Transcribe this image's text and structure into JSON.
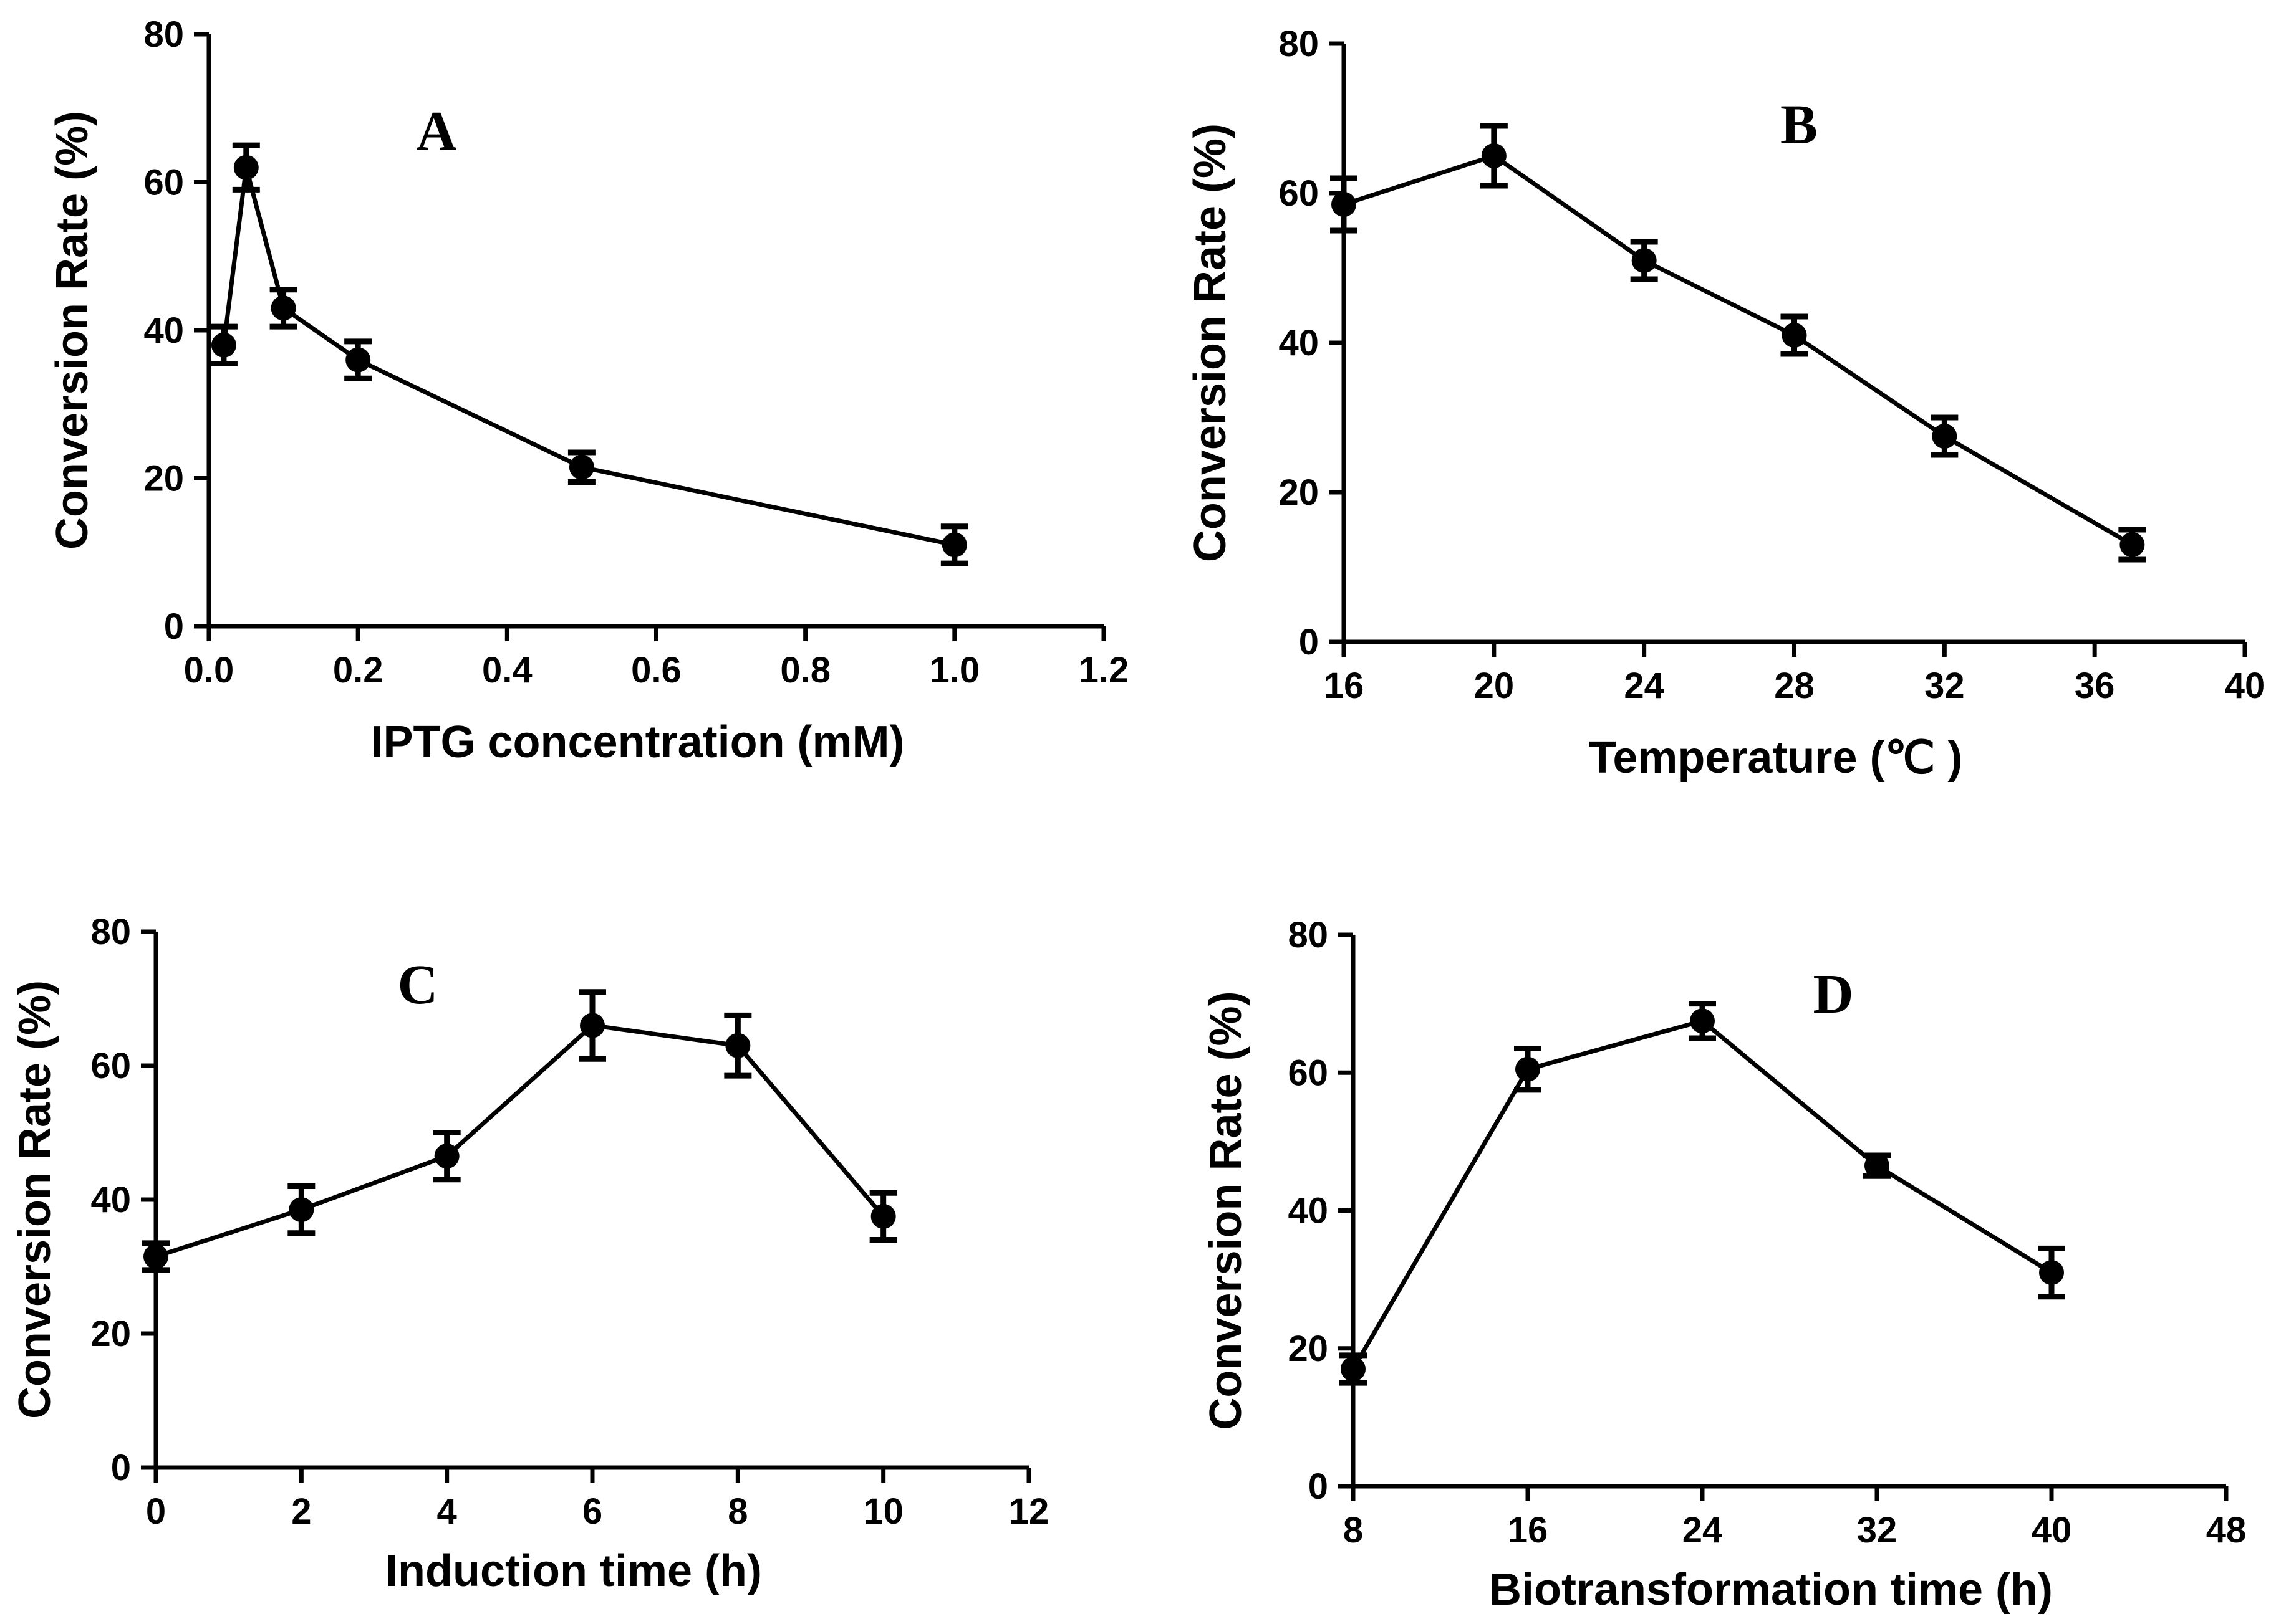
{
  "chart_data": [
    {
      "type": "line",
      "panel_label": "A",
      "title": "",
      "xlabel": "IPTG concentration (mM)",
      "ylabel": "Conversion Rate (%)",
      "xlim": [
        0,
        1.2
      ],
      "ylim": [
        0,
        80
      ],
      "xticks": [
        "0.0",
        "0.2",
        "0.4",
        "0.6",
        "0.8",
        "1.0",
        "1.2"
      ],
      "yticks": [
        "0",
        "20",
        "40",
        "60",
        "80"
      ],
      "grid": false,
      "series": [
        {
          "name": "Conversion rate",
          "x": [
            0.02,
            0.05,
            0.1,
            0.2,
            0.5,
            1.0
          ],
          "y": [
            38,
            62,
            43,
            36,
            21.5,
            11
          ],
          "err": [
            2.5,
            3,
            2.5,
            2.5,
            2,
            2.5
          ]
        }
      ]
    },
    {
      "type": "line",
      "panel_label": "B",
      "title": "",
      "xlabel": "Temperature (℃ )",
      "ylabel": "Conversion Rate (%)",
      "xlim": [
        16,
        40
      ],
      "ylim": [
        0,
        80
      ],
      "xticks": [
        "16",
        "20",
        "24",
        "28",
        "32",
        "36",
        "40"
      ],
      "yticks": [
        "0",
        "20",
        "40",
        "60",
        "80"
      ],
      "grid": false,
      "series": [
        {
          "name": "Conversion rate",
          "x": [
            16,
            20,
            24,
            28,
            32,
            37
          ],
          "y": [
            58.5,
            65,
            51,
            41,
            27.5,
            13
          ],
          "err": [
            3.5,
            4,
            2.5,
            2.5,
            2.5,
            2
          ]
        }
      ]
    },
    {
      "type": "line",
      "panel_label": "C",
      "title": "",
      "xlabel": "Induction time (h)",
      "ylabel": "Conversion Rate (%)",
      "xlim": [
        0,
        12
      ],
      "ylim": [
        0,
        80
      ],
      "xticks": [
        "0",
        "2",
        "4",
        "6",
        "8",
        "10",
        "12"
      ],
      "yticks": [
        "0",
        "20",
        "40",
        "60",
        "80"
      ],
      "grid": false,
      "series": [
        {
          "name": "Conversion rate",
          "x": [
            0,
            2,
            4,
            6,
            8,
            10
          ],
          "y": [
            31.5,
            38.5,
            46.5,
            66,
            63,
            37.5
          ],
          "err": [
            2,
            3.5,
            3.5,
            5,
            4.5,
            3.5
          ]
        }
      ]
    },
    {
      "type": "line",
      "panel_label": "D",
      "title": "",
      "xlabel": "Biotransformation time (h)",
      "ylabel": "Conversion Rate (%)",
      "xlim": [
        8,
        48
      ],
      "ylim": [
        0,
        80
      ],
      "xticks": [
        "8",
        "16",
        "24",
        "32",
        "40",
        "48"
      ],
      "yticks": [
        "0",
        "20",
        "40",
        "60",
        "80"
      ],
      "grid": false,
      "series": [
        {
          "name": "Conversion rate",
          "x": [
            8,
            16,
            24,
            32,
            40
          ],
          "y": [
            17,
            60.5,
            67.5,
            46.5,
            31
          ],
          "err": [
            2,
            3,
            2.5,
            1.5,
            3.5
          ]
        }
      ]
    }
  ]
}
